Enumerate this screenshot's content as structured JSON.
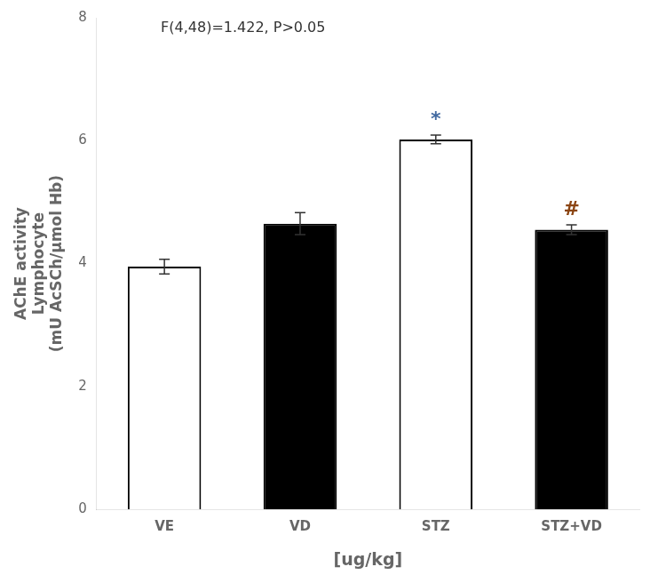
{
  "chart_data": {
    "type": "bar",
    "categories": [
      "VE",
      "VD",
      "STZ",
      "STZ+VD"
    ],
    "values": [
      3.95,
      4.65,
      6.02,
      4.55
    ],
    "errors": [
      0.12,
      0.18,
      0.07,
      0.08
    ],
    "colors": [
      "white",
      "black",
      "white",
      "black"
    ],
    "ylabel": "AChE activity\nLymphocyte\n(mU AcSCh/μmol Hb)",
    "xlabel": "[ug/kg]",
    "annotations": [
      {
        "text": "F(4,48)=1.422, P>0.05"
      },
      {
        "text": "*",
        "category": "STZ",
        "color": "#4169a0"
      },
      {
        "text": "#",
        "category": "STZ+VD",
        "color": "#8B4513"
      }
    ],
    "ylim": [
      0,
      8
    ],
    "yticks": [
      0,
      2,
      4,
      6,
      8
    ],
    "grid": false
  }
}
